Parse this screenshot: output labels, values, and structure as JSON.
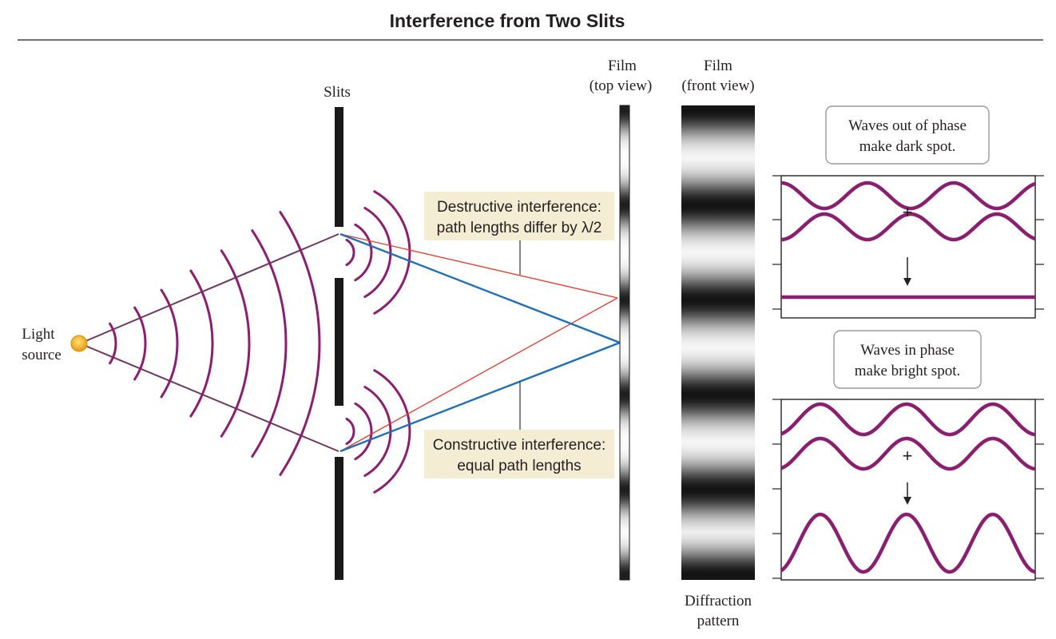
{
  "title": "Interference from Two Slits",
  "labels": {
    "light_source": [
      "Light",
      "source"
    ],
    "slits": "Slits",
    "film_top": [
      "Film",
      "(top view)"
    ],
    "film_front": [
      "Film",
      "(front view)"
    ],
    "diffraction": [
      "Diffraction",
      "pattern"
    ]
  },
  "callouts": {
    "destructive": [
      "Destructive interference:",
      "path lengths differ by λ/2"
    ],
    "constructive": [
      "Constructive interference:",
      "equal path lengths"
    ]
  },
  "panels": {
    "dark": {
      "bubble": [
        "Waves out of phase",
        "make dark spot."
      ],
      "plus": "+"
    },
    "bright": {
      "bubble": [
        "Waves in phase",
        "make bright spot."
      ],
      "plus": "+"
    }
  },
  "colors": {
    "wave": "#8b1f6f",
    "ray_constructive": "#1e6fb5",
    "ray_destructive": "#e03a2f",
    "ray_source": "#6b3a5e",
    "barrier": "#1a1a1a",
    "callout_bg": "#f5ecd4",
    "source": "#f2b51f"
  }
}
